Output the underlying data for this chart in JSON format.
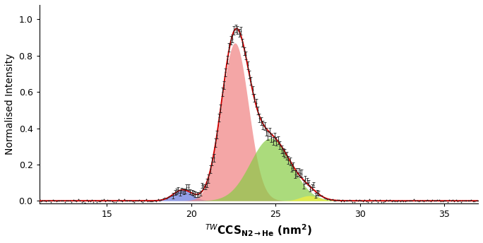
{
  "ylabel": "Normalised Intensity",
  "xlim": [
    11,
    37
  ],
  "ylim": [
    -0.015,
    1.08
  ],
  "xticks": [
    15,
    20,
    25,
    30,
    35
  ],
  "yticks": [
    0.0,
    0.2,
    0.4,
    0.6,
    0.8,
    1.0
  ],
  "gaussians": [
    {
      "mean": 19.5,
      "sigma": 0.55,
      "amplitude": 0.06,
      "color": "#6677dd",
      "alpha": 0.7
    },
    {
      "mean": 22.6,
      "sigma": 0.8,
      "amplitude": 0.87,
      "color": "#f08080",
      "alpha": 0.7
    },
    {
      "mean": 24.7,
      "sigma": 1.2,
      "amplitude": 0.345,
      "color": "#88cc44",
      "alpha": 0.7
    },
    {
      "mean": 27.0,
      "sigma": 0.55,
      "amplitude": 0.028,
      "color": "#eeee44",
      "alpha": 0.8
    }
  ],
  "fit_color": "#cc0000",
  "fit_linewidth": 1.4,
  "dot_color": "#222222",
  "background_color": "#ffffff",
  "n_data_points": 260
}
